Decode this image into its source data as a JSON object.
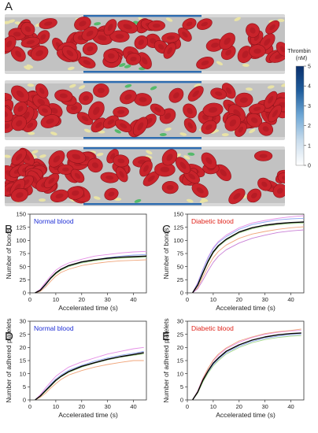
{
  "figure": {
    "panel_A_label": "A",
    "colorbar": {
      "title": "Thrombin",
      "unit": "(nM)",
      "ticks": [
        "5",
        "4",
        "3",
        "2",
        "1",
        "0"
      ],
      "colors": [
        "#ffffff",
        "#c9dcec",
        "#6fa8d6",
        "#1f5d9c",
        "#0a2f6b"
      ]
    },
    "vessel_colors": {
      "rbc": "#c9232b",
      "platelet": "#e9e3a6",
      "wall": "#d8d8d8",
      "bound_platelet": "#55b96b"
    }
  },
  "chart_data": [
    {
      "panel": "B",
      "type": "line",
      "annotation": "Normal blood",
      "annotation_color": "#1f2fd6",
      "xlabel": "Accelerated time (s)",
      "ylabel": "Number of bonds",
      "xlim": [
        0,
        45
      ],
      "ylim": [
        0,
        150
      ],
      "xticks": [
        0,
        10,
        20,
        30,
        40
      ],
      "yticks": [
        0,
        25,
        50,
        75,
        100,
        125,
        150
      ],
      "series": [
        {
          "color": "#000000",
          "x": [
            2,
            4,
            6,
            8,
            10,
            12,
            15,
            20,
            25,
            30,
            35,
            40,
            45
          ],
          "y": [
            0,
            5,
            16,
            28,
            38,
            45,
            52,
            59,
            63,
            66,
            68,
            69,
            70
          ]
        },
        {
          "color": "#e58fe6",
          "x": [
            2,
            4,
            6,
            8,
            10,
            12,
            15,
            20,
            25,
            30,
            35,
            40,
            45
          ],
          "y": [
            0,
            7,
            20,
            32,
            43,
            50,
            57,
            64,
            70,
            73,
            76,
            78,
            79
          ]
        },
        {
          "color": "#8fa8f2",
          "x": [
            2,
            4,
            6,
            8,
            10,
            12,
            15,
            20,
            25,
            30,
            35,
            40,
            45
          ],
          "y": [
            0,
            4,
            14,
            27,
            37,
            44,
            51,
            58,
            63,
            67,
            70,
            72,
            73
          ]
        },
        {
          "color": "#f0a57a",
          "x": [
            2,
            4,
            6,
            8,
            10,
            12,
            15,
            20,
            25,
            30,
            35,
            40,
            45
          ],
          "y": [
            0,
            3,
            11,
            22,
            32,
            39,
            45,
            52,
            56,
            59,
            61,
            62,
            63
          ]
        },
        {
          "color": "#a4d88c",
          "x": [
            2,
            4,
            6,
            8,
            10,
            12,
            15,
            20,
            25,
            30,
            35,
            40,
            45
          ],
          "y": [
            0,
            5,
            15,
            27,
            36,
            43,
            50,
            57,
            61,
            64,
            66,
            67,
            68
          ]
        }
      ]
    },
    {
      "panel": "C",
      "type": "line",
      "annotation": "Diabetic blood",
      "annotation_color": "#e0241b",
      "xlabel": "Accelerated time (s)",
      "ylabel": "Number of bonds",
      "xlim": [
        0,
        45
      ],
      "ylim": [
        0,
        150
      ],
      "xticks": [
        0,
        10,
        20,
        30,
        40
      ],
      "yticks": [
        0,
        25,
        50,
        75,
        100,
        125,
        150
      ],
      "series": [
        {
          "color": "#000000",
          "x": [
            2,
            4,
            6,
            8,
            10,
            12,
            15,
            20,
            25,
            30,
            35,
            40,
            45
          ],
          "y": [
            0,
            15,
            38,
            60,
            78,
            90,
            102,
            116,
            124,
            129,
            132,
            134,
            135
          ]
        },
        {
          "color": "#e58fe6",
          "x": [
            2,
            4,
            6,
            8,
            10,
            12,
            15,
            20,
            25,
            30,
            35,
            40,
            45
          ],
          "y": [
            0,
            20,
            45,
            68,
            86,
            98,
            110,
            124,
            133,
            138,
            142,
            145,
            147
          ]
        },
        {
          "color": "#8fa8f2",
          "x": [
            2,
            4,
            6,
            8,
            10,
            12,
            15,
            20,
            25,
            30,
            35,
            40,
            45
          ],
          "y": [
            0,
            18,
            44,
            66,
            84,
            96,
            107,
            121,
            130,
            135,
            139,
            141,
            142
          ]
        },
        {
          "color": "#f0a57a",
          "x": [
            2,
            4,
            6,
            8,
            10,
            12,
            15,
            20,
            25,
            30,
            35,
            40,
            45
          ],
          "y": [
            0,
            10,
            30,
            50,
            67,
            79,
            91,
            104,
            112,
            117,
            121,
            124,
            126
          ]
        },
        {
          "color": "#a4d88c",
          "x": [
            2,
            4,
            6,
            8,
            10,
            12,
            15,
            20,
            25,
            30,
            35,
            40,
            45
          ],
          "y": [
            0,
            14,
            36,
            58,
            76,
            88,
            100,
            114,
            122,
            127,
            130,
            132,
            133
          ]
        },
        {
          "color": "#c97fd6",
          "x": [
            2,
            4,
            6,
            8,
            10,
            12,
            15,
            20,
            25,
            30,
            35,
            40,
            45
          ],
          "y": [
            0,
            8,
            24,
            42,
            58,
            70,
            82,
            95,
            104,
            110,
            115,
            118,
            120
          ]
        }
      ]
    },
    {
      "panel": "D",
      "type": "line",
      "annotation": "Normal blood",
      "annotation_color": "#1f2fd6",
      "xlabel": "Accelerated time (s)",
      "ylabel": "Number of adhered platelets",
      "xlim": [
        0,
        45
      ],
      "ylim": [
        0,
        30
      ],
      "xticks": [
        0,
        10,
        20,
        30,
        40
      ],
      "yticks": [
        0,
        5,
        10,
        15,
        20,
        25,
        30
      ],
      "series": [
        {
          "color": "#000000",
          "x": [
            2,
            4,
            6,
            8,
            10,
            12,
            15,
            20,
            25,
            30,
            35,
            40,
            44
          ],
          "y": [
            0,
            1.5,
            3.5,
            5.5,
            7.5,
            9,
            10.8,
            12.8,
            14.2,
            15.5,
            16.5,
            17.3,
            18
          ]
        },
        {
          "color": "#e58fe6",
          "x": [
            2,
            4,
            6,
            8,
            10,
            12,
            15,
            20,
            25,
            30,
            35,
            40,
            44
          ],
          "y": [
            0,
            2,
            4.5,
            6.8,
            9,
            10.5,
            12.5,
            14.5,
            16,
            17.5,
            18.5,
            19.5,
            20
          ]
        },
        {
          "color": "#8fa8f2",
          "x": [
            2,
            4,
            6,
            8,
            10,
            12,
            15,
            20,
            25,
            30,
            35,
            40,
            44
          ],
          "y": [
            0,
            1.5,
            3.8,
            6,
            8,
            9.5,
            11.3,
            13.2,
            14.8,
            16,
            17,
            17.8,
            18.5
          ]
        },
        {
          "color": "#f0a57a",
          "x": [
            2,
            4,
            6,
            8,
            10,
            12,
            15,
            20,
            25,
            30,
            35,
            40,
            44
          ],
          "y": [
            0,
            1,
            2.5,
            4.5,
            6.2,
            7.8,
            9.5,
            11.2,
            12.5,
            13.5,
            14.3,
            15,
            15
          ]
        },
        {
          "color": "#a4d88c",
          "x": [
            2,
            4,
            6,
            8,
            10,
            12,
            15,
            20,
            25,
            30,
            35,
            40,
            44
          ],
          "y": [
            0,
            1.3,
            3.2,
            5.2,
            7.2,
            8.8,
            10.5,
            12.5,
            14,
            15.3,
            16.3,
            17,
            17.5
          ]
        }
      ]
    },
    {
      "panel": "E",
      "type": "line",
      "annotation": "Diabetic blood",
      "annotation_color": "#e0241b",
      "xlabel": "Accelerated time (s)",
      "ylabel": "Number of adhered platelets",
      "xlim": [
        0,
        45
      ],
      "ylim": [
        0,
        30
      ],
      "xticks": [
        0,
        10,
        20,
        30,
        40
      ],
      "yticks": [
        0,
        5,
        10,
        15,
        20,
        25,
        30
      ],
      "series": [
        {
          "color": "#000000",
          "x": [
            2,
            4,
            6,
            8,
            10,
            12,
            15,
            20,
            25,
            30,
            35,
            40,
            44
          ],
          "y": [
            0,
            3,
            7.5,
            11,
            14,
            16,
            18.5,
            21,
            22.8,
            24,
            24.8,
            25.3,
            25.5
          ]
        },
        {
          "color": "#e58fe6",
          "x": [
            2,
            4,
            6,
            8,
            10,
            12,
            15,
            20,
            25,
            30,
            35,
            40,
            44
          ],
          "y": [
            0,
            3.5,
            8.3,
            12,
            15,
            17,
            19.5,
            22,
            23.8,
            25,
            25.8,
            26.3,
            26.5
          ]
        },
        {
          "color": "#8fa8f2",
          "x": [
            2,
            4,
            6,
            8,
            10,
            12,
            15,
            20,
            25,
            30,
            35,
            40,
            44
          ],
          "y": [
            0,
            2.8,
            7,
            10.5,
            13.5,
            15.5,
            18,
            20.5,
            22.3,
            23.5,
            24.3,
            24.8,
            25
          ]
        },
        {
          "color": "#f0a57a",
          "x": [
            2,
            4,
            6,
            8,
            10,
            12,
            15,
            20,
            25,
            30,
            35,
            40,
            44
          ],
          "y": [
            0,
            3.2,
            8,
            12,
            15.2,
            17.5,
            19.8,
            22.5,
            24,
            25.3,
            26,
            26.5,
            27
          ]
        },
        {
          "color": "#a4d88c",
          "x": [
            2,
            4,
            6,
            8,
            10,
            12,
            15,
            20,
            25,
            30,
            35,
            40,
            44
          ],
          "y": [
            0,
            2.6,
            6.8,
            10.2,
            13,
            15,
            17.5,
            20,
            21.8,
            23,
            23.8,
            24.3,
            24.5
          ]
        }
      ]
    }
  ]
}
